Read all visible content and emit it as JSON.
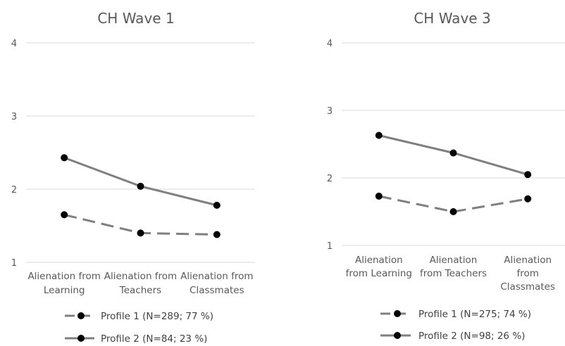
{
  "chart_data": [
    {
      "type": "line",
      "title": "CH Wave 1",
      "categories": [
        [
          "Alienation from",
          "Learning"
        ],
        [
          "Alienation from",
          "Teachers"
        ],
        [
          "Alienation from",
          "Classmates"
        ]
      ],
      "ylim": [
        1,
        4
      ],
      "yticks": [
        "1",
        "2",
        "3",
        "4"
      ],
      "grid": true,
      "legend_position": "bottom",
      "series": [
        {
          "name": "Profile 1 (N=289; 77 %)",
          "values": [
            1.65,
            1.4,
            1.38
          ],
          "style": "dashed",
          "color": "#7f7f7f"
        },
        {
          "name": "Profile 2 (N=84; 23 %)",
          "values": [
            2.43,
            2.04,
            1.78
          ],
          "style": "solid",
          "color": "#7f7f7f"
        }
      ]
    },
    {
      "type": "line",
      "title": "CH Wave 3",
      "categories": [
        [
          "Alienation",
          "from Learning"
        ],
        [
          "Alienation",
          "from Teachers"
        ],
        [
          "Alienation",
          "from",
          "Classmates"
        ]
      ],
      "ylim": [
        1,
        4
      ],
      "yticks": [
        "1",
        "2",
        "3",
        "4"
      ],
      "grid": true,
      "legend_position": "bottom",
      "series": [
        {
          "name": "Profile 1 (N=275; 74 %)",
          "values": [
            1.73,
            1.5,
            1.69
          ],
          "style": "dashed",
          "color": "#7f7f7f"
        },
        {
          "name": "Profile 2 (N=98; 26 %)",
          "values": [
            2.63,
            2.37,
            2.05
          ],
          "style": "solid",
          "color": "#7f7f7f"
        }
      ]
    }
  ]
}
